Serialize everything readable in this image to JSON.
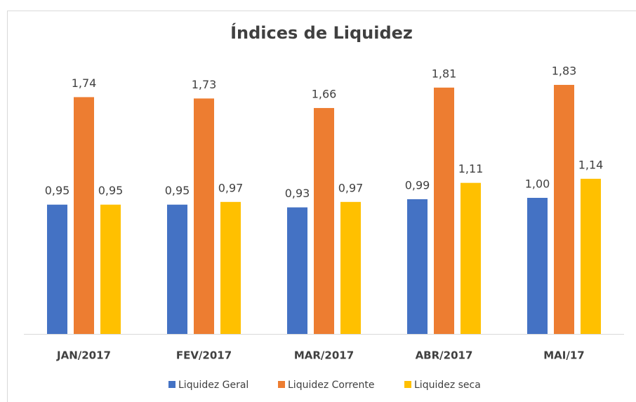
{
  "chart_data": {
    "type": "bar",
    "title": "Índices de Liquidez",
    "categories": [
      "JAN/2017",
      "FEV/2017",
      "MAR/2017",
      "ABR/2017",
      "MAI/17"
    ],
    "series": [
      {
        "name": "Liquidez Geral",
        "color": "#4472c4",
        "values": [
          0.95,
          0.95,
          0.93,
          0.99,
          1.0
        ],
        "value_labels": [
          "0,95",
          "0,95",
          "0,93",
          "0,99",
          "1,00"
        ]
      },
      {
        "name": "Liquidez Corrente",
        "color": "#ed7d31",
        "values": [
          1.74,
          1.73,
          1.66,
          1.81,
          1.83
        ],
        "value_labels": [
          "1,74",
          "1,73",
          "1,66",
          "1,81",
          "1,83"
        ]
      },
      {
        "name": "Liquidez seca",
        "color": "#ffc000",
        "values": [
          0.95,
          0.97,
          0.97,
          1.11,
          1.14
        ],
        "value_labels": [
          "0,95",
          "0,97",
          "0,97",
          "1,11",
          "1,14"
        ]
      }
    ],
    "legend": "bottom"
  }
}
